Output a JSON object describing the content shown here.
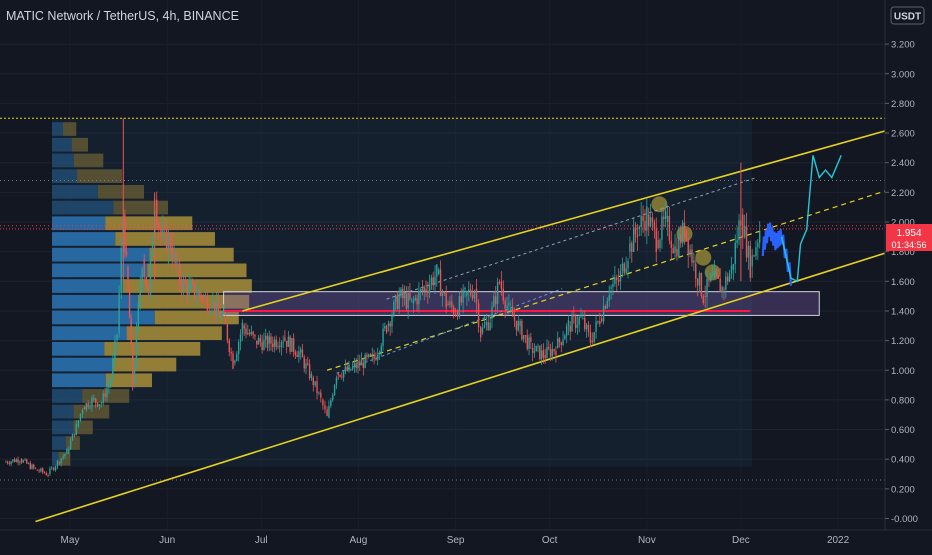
{
  "header": {
    "title": "MATIC Network / TetherUS, 4h, BINANCE"
  },
  "currency_badge": "USDT",
  "price_badge": {
    "price": "1.954",
    "countdown": "01:34:56",
    "color": "#f23645"
  },
  "colors": {
    "background": "#131722",
    "axis_text": "#b2b5be",
    "channel": "#e6d21d",
    "up_candle": "#26a69a",
    "down_candle": "#ef5350",
    "projection_teal": "#26c6da",
    "projection_blue": "#2962ff",
    "volume_profile_up": "#2f86d1",
    "volume_profile_down": "#d4a72c"
  },
  "chart_data": {
    "type": "candlestick",
    "title": "MATIC Network / TetherUS, 4h, BINANCE",
    "xlabel": "",
    "ylabel": "",
    "x_ticks": [
      "May",
      "Jun",
      "Jul",
      "Aug",
      "Sep",
      "Oct",
      "Nov",
      "Dec",
      "2022"
    ],
    "y_ticks": [
      "-0.000",
      "0.200",
      "0.400",
      "0.600",
      "0.800",
      "1.000",
      "1.200",
      "1.400",
      "1.600",
      "1.800",
      "2.000",
      "2.200",
      "2.400",
      "2.600",
      "2.800",
      "3.000",
      "3.200"
    ],
    "ylim": [
      -0.05,
      3.45
    ],
    "grid": true,
    "last_price": 1.954,
    "price_path": [
      [
        "2021-04-10",
        0.38
      ],
      [
        "2021-04-15",
        0.4
      ],
      [
        "2021-04-20",
        0.33
      ],
      [
        "2021-04-24",
        0.3
      ],
      [
        "2021-04-27",
        0.38
      ],
      [
        "2021-04-30",
        0.45
      ],
      [
        "2021-05-03",
        0.62
      ],
      [
        "2021-05-05",
        0.75
      ],
      [
        "2021-05-08",
        0.8
      ],
      [
        "2021-05-11",
        0.78
      ],
      [
        "2021-05-14",
        0.95
      ],
      [
        "2021-05-16",
        1.25
      ],
      [
        "2021-05-18",
        2.05
      ],
      [
        "2021-05-19",
        1.7
      ],
      [
        "2021-05-20",
        1.35
      ],
      [
        "2021-05-21",
        0.9
      ],
      [
        "2021-05-24",
        1.75
      ],
      [
        "2021-05-26",
        1.5
      ],
      [
        "2021-05-28",
        2.15
      ],
      [
        "2021-05-30",
        1.9
      ],
      [
        "2021-06-02",
        1.85
      ],
      [
        "2021-06-05",
        1.6
      ],
      [
        "2021-06-08",
        1.55
      ],
      [
        "2021-06-12",
        1.5
      ],
      [
        "2021-06-15",
        1.45
      ],
      [
        "2021-06-19",
        1.35
      ],
      [
        "2021-06-22",
        1.05
      ],
      [
        "2021-06-25",
        1.3
      ],
      [
        "2021-06-29",
        1.2
      ],
      [
        "2021-07-03",
        1.18
      ],
      [
        "2021-07-08",
        1.22
      ],
      [
        "2021-07-13",
        1.12
      ],
      [
        "2021-07-17",
        0.95
      ],
      [
        "2021-07-20",
        0.8
      ],
      [
        "2021-07-22",
        0.68
      ],
      [
        "2021-07-25",
        0.98
      ],
      [
        "2021-07-29",
        1.0
      ],
      [
        "2021-08-02",
        1.05
      ],
      [
        "2021-08-06",
        1.08
      ],
      [
        "2021-08-10",
        1.3
      ],
      [
        "2021-08-14",
        1.5
      ],
      [
        "2021-08-18",
        1.45
      ],
      [
        "2021-08-22",
        1.55
      ],
      [
        "2021-08-26",
        1.65
      ],
      [
        "2021-08-29",
        1.45
      ],
      [
        "2021-09-01",
        1.4
      ],
      [
        "2021-09-04",
        1.5
      ],
      [
        "2021-09-07",
        1.55
      ],
      [
        "2021-09-09",
        1.25
      ],
      [
        "2021-09-12",
        1.35
      ],
      [
        "2021-09-15",
        1.6
      ],
      [
        "2021-09-18",
        1.4
      ],
      [
        "2021-09-21",
        1.3
      ],
      [
        "2021-09-25",
        1.15
      ],
      [
        "2021-09-29",
        1.1
      ],
      [
        "2021-10-03",
        1.15
      ],
      [
        "2021-10-07",
        1.3
      ],
      [
        "2021-10-11",
        1.35
      ],
      [
        "2021-10-14",
        1.2
      ],
      [
        "2021-10-17",
        1.35
      ],
      [
        "2021-10-20",
        1.55
      ],
      [
        "2021-10-23",
        1.6
      ],
      [
        "2021-10-26",
        1.8
      ],
      [
        "2021-10-29",
        1.95
      ],
      [
        "2021-11-01",
        2.05
      ],
      [
        "2021-11-04",
        1.88
      ],
      [
        "2021-11-07",
        2.0
      ],
      [
        "2021-11-10",
        1.82
      ],
      [
        "2021-11-13",
        1.95
      ],
      [
        "2021-11-16",
        1.72
      ],
      [
        "2021-11-19",
        1.5
      ],
      [
        "2021-11-22",
        1.62
      ],
      [
        "2021-11-25",
        1.55
      ],
      [
        "2021-11-28",
        1.68
      ],
      [
        "2021-12-01",
        2.05
      ],
      [
        "2021-12-04",
        1.7
      ],
      [
        "2021-12-07",
        1.95
      ]
    ],
    "projection_path": [
      [
        "2021-12-08",
        1.82
      ],
      [
        "2021-12-10",
        1.95
      ],
      [
        "2021-12-12",
        1.86
      ],
      [
        "2021-12-14",
        1.9
      ],
      [
        "2021-12-17",
        1.62
      ],
      [
        "2021-12-19",
        1.6
      ],
      [
        "2021-12-20",
        1.85
      ],
      [
        "2021-12-22",
        1.95
      ],
      [
        "2021-12-24",
        2.45
      ],
      [
        "2021-12-26",
        2.3
      ],
      [
        "2021-12-28",
        2.35
      ],
      [
        "2021-12-30",
        2.3
      ],
      [
        "2022-01-02",
        2.45
      ]
    ],
    "channel": {
      "upper": [
        [
          "2021-06-25",
          1.4
        ],
        [
          "2022-01-22",
          2.65
        ]
      ],
      "lower": [
        [
          "2021-04-20",
          -0.02
        ],
        [
          "2022-01-22",
          1.83
        ]
      ],
      "middle": [
        [
          "2021-07-22",
          1.0
        ],
        [
          "2022-01-22",
          2.25
        ]
      ]
    },
    "horizontal_levels": [
      2.7,
      2.28,
      1.975,
      0.26
    ],
    "support_zone": [
      1.37,
      1.53
    ],
    "support_line": 1.4
  }
}
